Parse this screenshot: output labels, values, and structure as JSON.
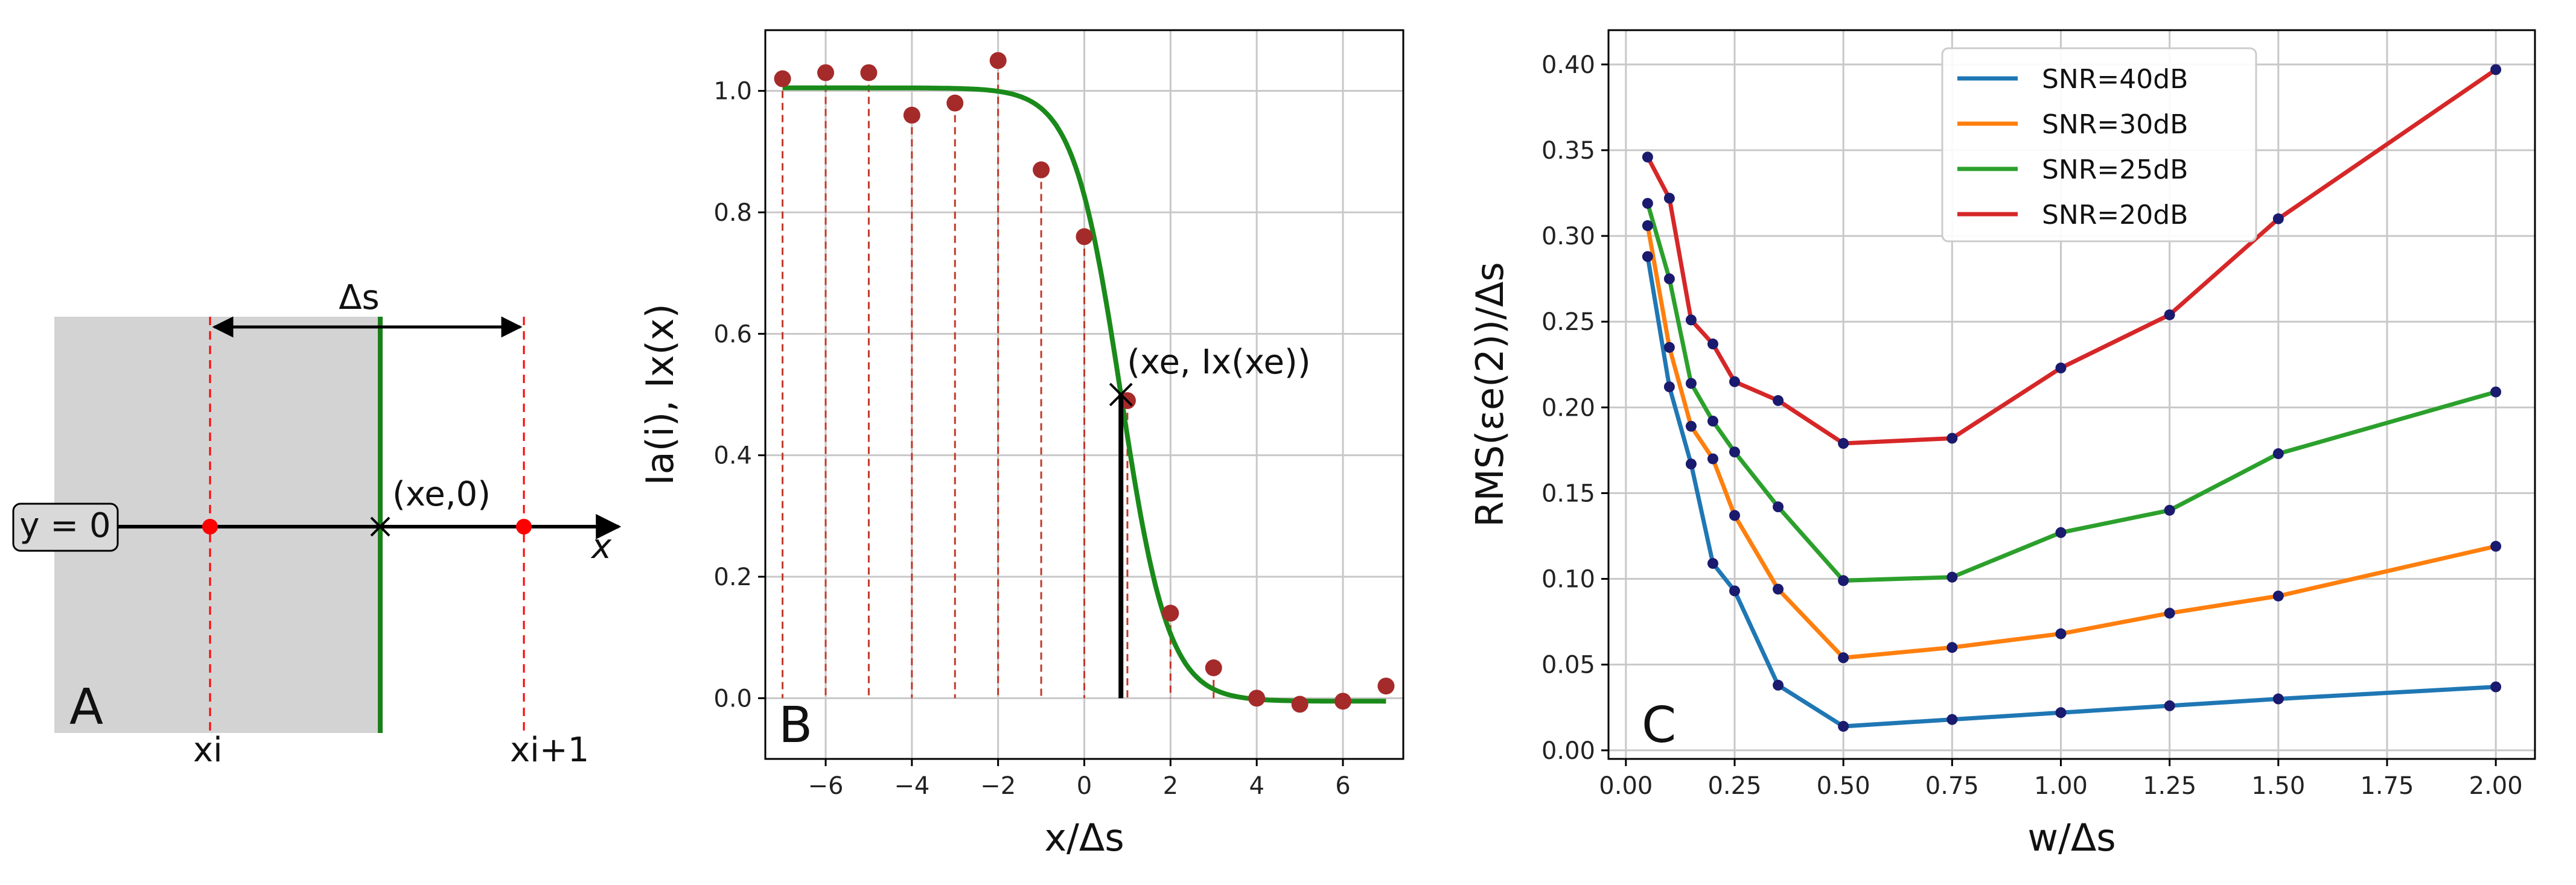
{
  "panel_a": {
    "letter": "A",
    "y0_label": "y = 0",
    "delta_label": "Δs",
    "xe_label": "(xe,0)",
    "x_label": "x",
    "xi_label": "xi",
    "xi1_label": "xi+1",
    "colors": {
      "shade": "#d3d3d3",
      "edge": "#1a7f1a",
      "sample": "#ff0000"
    }
  },
  "panel_b": {
    "letter": "B",
    "annotation": "(xe, Ix(xe))",
    "xe": 0.85
  },
  "panel_c": {
    "letter": "C"
  },
  "chart_data": [
    {
      "id": "B",
      "type": "scatter",
      "title": "",
      "xlabel": "x/Δs",
      "ylabel": "Ia(i), Ix(x)",
      "xlim": [
        -7.4,
        7.4
      ],
      "ylim": [
        -0.1,
        1.1
      ],
      "xticks": [
        -6,
        -4,
        -2,
        0,
        2,
        4,
        6
      ],
      "yticks": [
        0.0,
        0.2,
        0.4,
        0.6,
        0.8,
        1.0
      ],
      "grid": true,
      "series": [
        {
          "name": "Ia(i)",
          "kind": "points",
          "color": "#a52a2a",
          "x": [
            -7,
            -6,
            -5,
            -4,
            -3,
            -2,
            -1,
            0,
            1,
            2,
            3,
            4,
            5,
            6,
            7
          ],
          "y": [
            1.02,
            1.03,
            1.03,
            0.96,
            0.98,
            1.05,
            0.87,
            0.76,
            0.49,
            0.14,
            0.05,
            0.0,
            -0.01,
            -0.005,
            0.02
          ]
        },
        {
          "name": "Ix(x)",
          "kind": "curve",
          "color": "#1a8a1a",
          "model": "logistic",
          "top": 1.005,
          "bottom": -0.005,
          "center": 0.85,
          "scale": 0.55
        }
      ],
      "marker": {
        "x": 0.85,
        "y": 0.5
      }
    },
    {
      "id": "C",
      "type": "line",
      "title": "",
      "xlabel": "w/Δs",
      "ylabel": "RMS(εe(2))/Δs",
      "xlim": [
        -0.04,
        2.09
      ],
      "ylim": [
        -0.005,
        0.42
      ],
      "xticks": [
        0.0,
        0.25,
        0.5,
        0.75,
        1.0,
        1.25,
        1.5,
        1.75,
        2.0
      ],
      "yticks": [
        0.0,
        0.05,
        0.1,
        0.15,
        0.2,
        0.25,
        0.3,
        0.35,
        0.4
      ],
      "grid": true,
      "legend": "top-center",
      "x": [
        0.05,
        0.1,
        0.15,
        0.2,
        0.25,
        0.35,
        0.5,
        0.75,
        1.0,
        1.25,
        1.5,
        2.0
      ],
      "series": [
        {
          "name": "SNR=40dB",
          "color": "#1f77b4",
          "values": [
            0.288,
            0.212,
            0.167,
            0.109,
            0.093,
            0.038,
            0.014,
            0.018,
            0.022,
            0.026,
            0.03,
            0.037
          ]
        },
        {
          "name": "SNR=30dB",
          "color": "#ff7f0e",
          "values": [
            0.306,
            0.235,
            0.189,
            0.17,
            0.137,
            0.094,
            0.054,
            0.06,
            0.068,
            0.08,
            0.09,
            0.119
          ]
        },
        {
          "name": "SNR=25dB",
          "color": "#2ca02c",
          "values": [
            0.319,
            0.275,
            0.214,
            0.192,
            0.174,
            0.142,
            0.099,
            0.101,
            0.127,
            0.14,
            0.173,
            0.209
          ]
        },
        {
          "name": "SNR=20dB",
          "color": "#d62728",
          "values": [
            0.346,
            0.322,
            0.251,
            0.237,
            0.215,
            0.204,
            0.179,
            0.182,
            0.223,
            0.254,
            0.31,
            0.397
          ]
        }
      ],
      "point_color": "#1a1a6e"
    }
  ]
}
